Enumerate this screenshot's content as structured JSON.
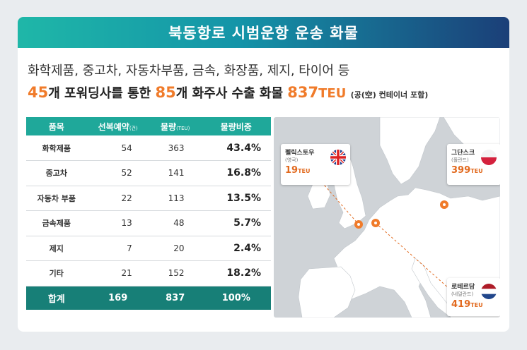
{
  "banner": {
    "title": "북동항로 시범운항 운송 화물"
  },
  "cargo_list": "화학제품, 중고차, 자동차부품, 금속, 화장품, 제지, 타이어 등",
  "summary": {
    "n_forwarders": "45",
    "part1": "개 포워딩사를 통한 ",
    "n_shippers": "85",
    "part2": "개 화주사 수출 화물 ",
    "teu_value": "837",
    "teu_unit": "TEU",
    "note": "(공(空) 컨테이너 포함)"
  },
  "table": {
    "headers": {
      "item": "품목",
      "bookings": "선복예약",
      "bookings_unit": "(건)",
      "volume": "물량",
      "volume_unit": "(TEU)",
      "share": "물량비중"
    },
    "rows": [
      {
        "item": "화학제품",
        "bookings": "54",
        "volume": "363",
        "share": "43.4%"
      },
      {
        "item": "중고차",
        "bookings": "52",
        "volume": "141",
        "share": "16.8%"
      },
      {
        "item": "자동차 부품",
        "bookings": "22",
        "volume": "113",
        "share": "13.5%"
      },
      {
        "item": "금속제품",
        "bookings": "13",
        "volume": "48",
        "share": "5.7%"
      },
      {
        "item": "제지",
        "bookings": "7",
        "volume": "20",
        "share": "2.4%"
      },
      {
        "item": "기타",
        "bookings": "21",
        "volume": "152",
        "share": "18.2%"
      }
    ],
    "total": {
      "item": "합계",
      "bookings": "169",
      "volume": "837",
      "share": "100%"
    }
  },
  "map": {
    "ports": [
      {
        "city": "펠릭스토우",
        "country": "(영국)",
        "value": "19",
        "unit": "TEU",
        "flag": "uk-flag"
      },
      {
        "city": "그단스크",
        "country": "(폴란드)",
        "value": "399",
        "unit": "TEU",
        "flag": "poland-flag"
      },
      {
        "city": "로테르담",
        "country": "(네덜란드)",
        "value": "419",
        "unit": "TEU",
        "flag": "netherlands-flag"
      }
    ],
    "colors": {
      "land": "#ffffff",
      "sea": "#cfd3d7",
      "marker": "#f07b2a"
    }
  }
}
